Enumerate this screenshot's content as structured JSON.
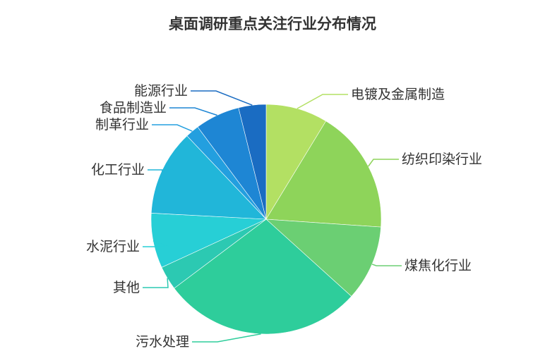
{
  "chart_data": {
    "type": "pie",
    "title": "桌面调研重点关注行业分布情况",
    "slices": [
      {
        "label": "电镀及金属制造",
        "value": 9,
        "color": "#b3e063"
      },
      {
        "label": "纺织印染行业",
        "value": 18,
        "color": "#8ed45a"
      },
      {
        "label": "煤焦化行业",
        "value": 11,
        "color": "#6bcf73"
      },
      {
        "label": "污水处理",
        "value": 29,
        "color": "#2ecd9b"
      },
      {
        "label": "其他",
        "value": 3.5,
        "color": "#2cc9b2"
      },
      {
        "label": "水泥行业",
        "value": 8,
        "color": "#27cfd6"
      },
      {
        "label": "化工行业",
        "value": 12.5,
        "color": "#21b6d9"
      },
      {
        "label": "制革行业",
        "value": 2,
        "color": "#239fdf"
      },
      {
        "label": "食品制造业",
        "value": 6.5,
        "color": "#1e86d4"
      },
      {
        "label": "能源行业",
        "value": 4,
        "color": "#1a6cc2"
      }
    ]
  }
}
